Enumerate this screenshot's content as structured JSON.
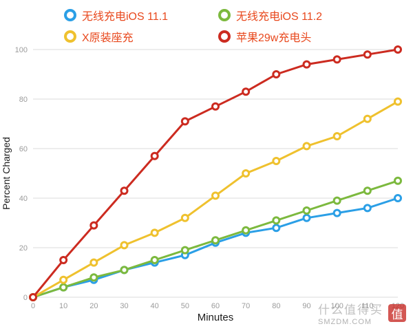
{
  "legend": {
    "text_color": "#E8481D",
    "position": "top"
  },
  "chart_data": {
    "type": "line",
    "x": [
      0,
      10,
      20,
      30,
      40,
      50,
      60,
      70,
      80,
      90,
      100,
      110,
      120
    ],
    "series": [
      {
        "name": "无线充电iOS 11.1",
        "color": "#2B9FE6",
        "values": [
          0,
          4,
          7,
          11,
          14,
          17,
          22,
          26,
          28,
          32,
          34,
          36,
          40
        ]
      },
      {
        "name": "无线充电iOS 11.2",
        "color": "#7CB93E",
        "values": [
          0,
          4,
          8,
          11,
          15,
          19,
          23,
          27,
          31,
          35,
          39,
          43,
          47
        ]
      },
      {
        "name": "X原装座充",
        "color": "#EFC12E",
        "values": [
          0,
          7,
          14,
          21,
          26,
          32,
          41,
          50,
          55,
          61,
          65,
          72,
          79
        ]
      },
      {
        "name": "苹果29w充电头",
        "color": "#CC2B20",
        "values": [
          0,
          15,
          29,
          43,
          57,
          71,
          77,
          83,
          90,
          94,
          96,
          98,
          100
        ]
      }
    ],
    "xlabel": "Minutes",
    "ylabel": "Percent Charged",
    "xlim": [
      0,
      120
    ],
    "ylim": [
      0,
      100
    ],
    "xticks": [
      0,
      10,
      20,
      30,
      40,
      50,
      60,
      70,
      80,
      90,
      100,
      110,
      120
    ],
    "yticks": [
      0,
      20,
      40,
      60,
      80,
      100
    ],
    "grid": "horizontal",
    "legend_position": "top",
    "marker": "donut",
    "tick_color": "#9B9B9B",
    "grid_color": "#DBDBDB",
    "axis_title_color": "#1C1C1C"
  },
  "watermark": {
    "title": "什么值得买",
    "domain": "SMZDM.COM",
    "stamp": "值"
  }
}
